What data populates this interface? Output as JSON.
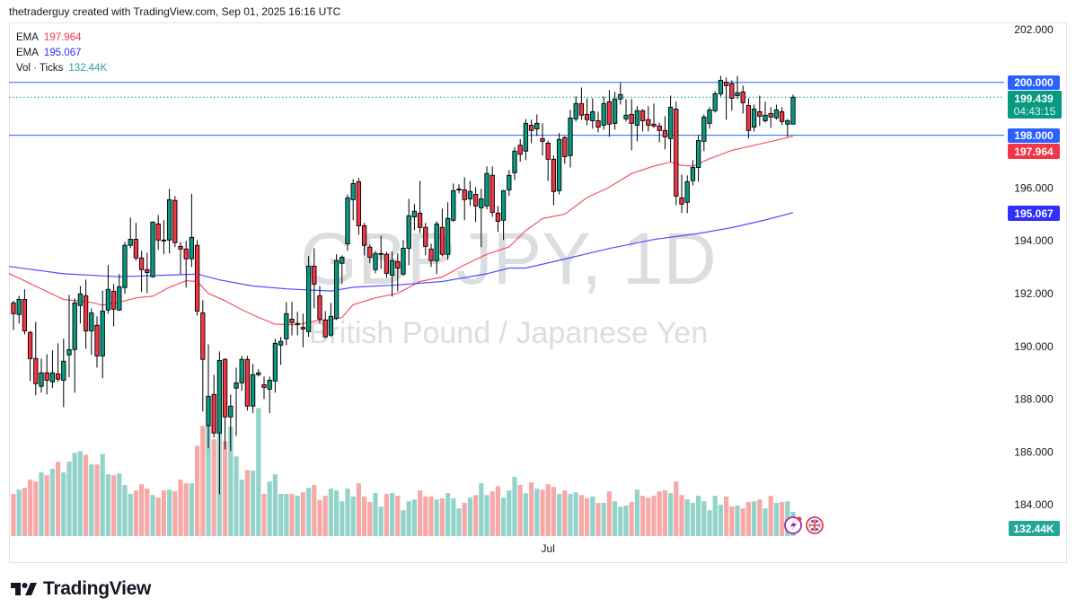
{
  "header": {
    "attribution": "thetraderguy created with TradingView.com, Sep 01, 2025 16:16 UTC"
  },
  "legend": [
    {
      "name": "EMA",
      "value": "197.964",
      "color": "#f23645"
    },
    {
      "name": "EMA",
      "value": "195.067",
      "color": "#3030ff"
    },
    {
      "name": "Vol · Ticks",
      "value": "132.44K",
      "color": "#26a69a"
    }
  ],
  "watermark": {
    "symbol": "GBPJPY, 1D",
    "description": "British Pound / Japanese Yen"
  },
  "price_labels": {
    "resistance": {
      "text": "200.000",
      "color": "#2962ff"
    },
    "last_price": {
      "text": "199.439",
      "countdown": "04:43:15",
      "color": "#089981"
    },
    "support": {
      "text": "198.000",
      "color": "#2962ff"
    },
    "ema_red": {
      "text": "197.964",
      "color": "#f23645"
    },
    "ema_blue": {
      "text": "195.067",
      "color": "#3030ff"
    },
    "volume": {
      "text": "132.44K",
      "color": "#26a69a"
    }
  },
  "icons": [
    "lightning-event-icon",
    "uk-flag-icon",
    "tradingview-logo-icon"
  ],
  "footer": {
    "logo_text": "TradingView"
  },
  "colors": {
    "up": "#089981",
    "down": "#f23645",
    "vol_up": "#92d3ca",
    "vol_down": "#f7a9a7",
    "hline": "#2962ff"
  },
  "chart_data": {
    "type": "candlestick",
    "ylim": [
      182.78,
      202.27
    ],
    "y_ticks": [
      "202.000",
      "200.000",
      "198.000",
      "196.000",
      "194.000",
      "192.000",
      "190.000",
      "188.000",
      "186.000",
      "184.000"
    ],
    "y_tick_values": [
      202,
      200,
      198,
      196,
      194,
      192,
      190,
      188,
      186,
      184
    ],
    "x_ticks": [
      {
        "label": "Jul",
        "index": 97
      }
    ],
    "horizontal_lines": [
      200.0,
      198.0
    ],
    "last_price": 199.439,
    "candles_ohlc": [
      [
        191.65,
        191.73,
        190.62,
        191.24
      ],
      [
        191.21,
        191.92,
        190.87,
        191.78
      ],
      [
        191.78,
        192.16,
        190.45,
        190.59
      ],
      [
        190.53,
        190.59,
        188.69,
        189.54
      ],
      [
        189.54,
        190.93,
        188.15,
        188.59
      ],
      [
        188.49,
        189.54,
        188.25,
        189.0
      ],
      [
        189.0,
        189.71,
        188.18,
        188.72
      ],
      [
        188.66,
        189.85,
        188.42,
        189.0
      ],
      [
        188.96,
        190.12,
        188.66,
        188.76
      ],
      [
        188.72,
        190.29,
        187.7,
        189.44
      ],
      [
        189.68,
        191.95,
        188.83,
        189.88
      ],
      [
        189.88,
        191.82,
        188.25,
        191.65
      ],
      [
        191.55,
        192.29,
        190.87,
        191.99
      ],
      [
        191.92,
        192.53,
        189.91,
        190.59
      ],
      [
        190.59,
        191.44,
        189.68,
        191.27
      ],
      [
        190.8,
        191.14,
        189.2,
        189.64
      ],
      [
        189.64,
        192.12,
        188.79,
        191.34
      ],
      [
        191.38,
        193.08,
        191.24,
        192.16
      ],
      [
        192.09,
        192.36,
        190.76,
        191.41
      ],
      [
        191.38,
        192.74,
        191.34,
        192.26
      ],
      [
        192.23,
        193.96,
        191.99,
        193.83
      ],
      [
        193.83,
        194.88,
        193.72,
        194.06
      ],
      [
        194.06,
        194.68,
        193.25,
        193.35
      ],
      [
        193.35,
        193.62,
        192.06,
        192.91
      ],
      [
        192.91,
        193.55,
        192.02,
        192.8
      ],
      [
        192.64,
        194.74,
        192.6,
        194.71
      ],
      [
        194.64,
        194.98,
        193.66,
        194.03
      ],
      [
        194.03,
        194.78,
        193.49,
        194.0
      ],
      [
        194.03,
        195.97,
        193.52,
        195.56
      ],
      [
        195.53,
        195.7,
        193.76,
        193.93
      ],
      [
        193.79,
        193.96,
        192.74,
        193.69
      ],
      [
        193.69,
        194.0,
        192.23,
        193.32
      ],
      [
        193.32,
        195.78,
        193.01,
        194.13
      ],
      [
        193.83,
        194.03,
        191.17,
        191.34
      ],
      [
        191.27,
        191.75,
        187.53,
        189.51
      ],
      [
        187.0,
        190.08,
        186.14,
        188.11
      ],
      [
        188.18,
        188.93,
        186.55,
        186.72
      ],
      [
        186.72,
        189.81,
        184.4,
        189.47
      ],
      [
        189.51,
        189.55,
        186.1,
        187.33
      ],
      [
        187.33,
        188.18,
        186.04,
        187.74
      ],
      [
        188.42,
        189.2,
        186.61,
        188.62
      ],
      [
        188.62,
        189.64,
        188.32,
        189.51
      ],
      [
        189.51,
        189.64,
        187.57,
        187.74
      ],
      [
        187.74,
        189.34,
        187.47,
        188.93
      ],
      [
        188.93,
        189.13,
        188.86,
        189.0
      ],
      [
        188.55,
        188.86,
        188.01,
        188.45
      ],
      [
        188.38,
        188.86,
        187.47,
        188.72
      ],
      [
        188.69,
        190.29,
        188.25,
        190.12
      ],
      [
        190.05,
        190.36,
        189.3,
        190.19
      ],
      [
        190.29,
        191.68,
        190.05,
        191.24
      ],
      [
        191.03,
        191.69,
        190.42,
        190.9
      ],
      [
        190.87,
        191.31,
        190.42,
        190.87
      ],
      [
        190.72,
        191.24,
        189.97,
        190.66
      ],
      [
        190.56,
        193.42,
        190.36,
        193.04
      ],
      [
        193.04,
        193.72,
        191.44,
        192.36
      ],
      [
        191.92,
        192.29,
        190.87,
        191.04
      ],
      [
        191.0,
        191.34,
        190.32,
        190.36
      ],
      [
        190.43,
        191.65,
        190.36,
        191.14
      ],
      [
        191.07,
        193.49,
        191.0,
        193.25
      ],
      [
        193.15,
        193.45,
        192.36,
        193.38
      ],
      [
        193.89,
        195.76,
        193.62,
        195.63
      ],
      [
        195.56,
        196.34,
        194.78,
        196.17
      ],
      [
        196.24,
        196.38,
        194.23,
        194.57
      ],
      [
        194.57,
        194.68,
        193.45,
        193.83
      ],
      [
        193.76,
        193.86,
        193.15,
        193.38
      ],
      [
        192.91,
        193.62,
        192.77,
        193.52
      ],
      [
        193.52,
        194.2,
        192.94,
        193.52
      ],
      [
        193.49,
        193.59,
        192.6,
        192.77
      ],
      [
        192.7,
        193.59,
        191.89,
        193.25
      ],
      [
        193.21,
        193.52,
        192.09,
        192.97
      ],
      [
        192.74,
        194.03,
        192.67,
        193.72
      ],
      [
        193.72,
        195.59,
        193.08,
        194.95
      ],
      [
        194.91,
        195.39,
        194.4,
        195.12
      ],
      [
        195.05,
        196.27,
        194.3,
        194.51
      ],
      [
        194.51,
        194.68,
        193.45,
        193.79
      ],
      [
        193.69,
        193.89,
        193.01,
        193.25
      ],
      [
        193.25,
        194.74,
        192.74,
        194.64
      ],
      [
        194.51,
        195.22,
        193.42,
        193.49
      ],
      [
        193.49,
        195.46,
        193.28,
        194.85
      ],
      [
        194.78,
        196.17,
        194.71,
        195.9
      ],
      [
        195.96,
        196.14,
        195.8,
        195.96
      ],
      [
        195.93,
        196.41,
        194.78,
        195.56
      ],
      [
        195.59,
        196.27,
        195.32,
        195.87
      ],
      [
        195.76,
        196.04,
        194.71,
        195.32
      ],
      [
        195.25,
        195.97,
        193.76,
        195.59
      ],
      [
        195.32,
        196.82,
        195.19,
        196.55
      ],
      [
        196.48,
        196.82,
        194.91,
        195.08
      ],
      [
        195.05,
        195.32,
        194.34,
        194.74
      ],
      [
        194.78,
        195.93,
        194.03,
        195.9
      ],
      [
        195.93,
        196.68,
        195.7,
        196.48
      ],
      [
        196.58,
        197.55,
        196.3,
        197.4
      ],
      [
        197.62,
        197.85,
        197.0,
        197.28
      ],
      [
        197.4,
        198.61,
        197.06,
        198.45
      ],
      [
        198.38,
        198.59,
        197.7,
        198.18
      ],
      [
        198.24,
        198.79,
        197.97,
        198.45
      ],
      [
        197.87,
        198.45,
        197.23,
        197.77
      ],
      [
        197.7,
        197.8,
        196.27,
        197.09
      ],
      [
        197.09,
        197.23,
        195.35,
        195.87
      ],
      [
        195.9,
        198.08,
        195.76,
        197.84
      ],
      [
        197.91,
        197.97,
        196.92,
        197.19
      ],
      [
        197.23,
        198.96,
        196.78,
        198.65
      ],
      [
        198.62,
        199.47,
        198.52,
        199.2
      ],
      [
        199.2,
        199.81,
        198.59,
        198.76
      ],
      [
        198.79,
        199.4,
        198.38,
        198.59
      ],
      [
        198.55,
        199.4,
        198.25,
        198.89
      ],
      [
        198.55,
        198.89,
        198.11,
        198.31
      ],
      [
        198.38,
        199.47,
        198.21,
        199.2
      ],
      [
        199.27,
        199.71,
        197.94,
        198.42
      ],
      [
        198.45,
        199.64,
        198.21,
        199.37
      ],
      [
        199.37,
        199.98,
        199.16,
        199.54
      ],
      [
        198.62,
        199.37,
        198.52,
        198.76
      ],
      [
        198.79,
        199.37,
        197.43,
        198.45
      ],
      [
        198.38,
        199.1,
        197.77,
        198.93
      ],
      [
        198.93,
        198.99,
        198.14,
        198.55
      ],
      [
        198.59,
        199.1,
        198.14,
        198.38
      ],
      [
        198.42,
        199.2,
        198.28,
        198.35
      ],
      [
        198.35,
        198.48,
        197.74,
        198.18
      ],
      [
        198.18,
        198.72,
        197.46,
        197.94
      ],
      [
        197.87,
        199.5,
        196.99,
        199.06
      ],
      [
        198.99,
        199.27,
        195.35,
        195.69
      ],
      [
        195.63,
        196.51,
        195.05,
        195.39
      ],
      [
        195.46,
        196.48,
        195.05,
        196.24
      ],
      [
        196.28,
        197.06,
        196.1,
        196.78
      ],
      [
        196.78,
        198.01,
        196.24,
        197.8
      ],
      [
        197.77,
        198.79,
        197.4,
        198.69
      ],
      [
        198.45,
        199.06,
        198.25,
        198.96
      ],
      [
        198.93,
        199.67,
        198.86,
        199.57
      ],
      [
        199.57,
        200.25,
        199.47,
        200.08
      ],
      [
        200.01,
        200.18,
        198.59,
        199.88
      ],
      [
        199.95,
        200.08,
        198.93,
        199.4
      ],
      [
        199.5,
        200.25,
        199.37,
        199.61
      ],
      [
        199.64,
        199.88,
        198.82,
        199.23
      ],
      [
        199.13,
        199.4,
        197.87,
        198.18
      ],
      [
        198.31,
        199.16,
        198.14,
        198.99
      ],
      [
        198.89,
        199.5,
        198.35,
        198.72
      ],
      [
        198.55,
        199.27,
        198.48,
        198.76
      ],
      [
        198.82,
        199.06,
        198.28,
        198.69
      ],
      [
        198.66,
        199.16,
        198.59,
        198.96
      ],
      [
        198.89,
        199.06,
        198.38,
        198.52
      ],
      [
        198.42,
        198.62,
        197.94,
        198.55
      ],
      [
        198.42,
        199.54,
        198.42,
        199.44
      ]
    ],
    "volume_k": [
      230,
      253,
      263,
      308,
      298,
      347,
      332,
      367,
      406,
      347,
      406,
      454,
      463,
      444,
      391,
      391,
      449,
      337,
      332,
      342,
      279,
      230,
      249,
      283,
      259,
      224,
      210,
      249,
      253,
      244,
      308,
      288,
      288,
      493,
      601,
      616,
      528,
      630,
      518,
      596,
      435,
      308,
      361,
      357,
      699,
      230,
      298,
      337,
      230,
      230,
      230,
      220,
      239,
      263,
      279,
      196,
      220,
      259,
      249,
      190,
      259,
      216,
      288,
      216,
      186,
      235,
      161,
      230,
      235,
      220,
      141,
      190,
      200,
      249,
      216,
      216,
      200,
      206,
      235,
      206,
      151,
      181,
      210,
      224,
      288,
      224,
      244,
      273,
      210,
      249,
      323,
      279,
      234,
      293,
      259,
      253,
      283,
      269,
      230,
      249,
      230,
      239,
      224,
      206,
      216,
      181,
      181,
      244,
      190,
      161,
      167,
      186,
      253,
      220,
      210,
      220,
      244,
      249,
      234,
      298,
      224,
      200,
      181,
      220,
      190,
      141,
      220,
      171,
      216,
      161,
      167,
      151,
      186,
      190,
      200,
      151,
      220,
      181,
      186,
      190,
      132.44
    ],
    "ema_red": [
      [
        0,
        192.77
      ],
      [
        10,
        191.78
      ],
      [
        15,
        191.67
      ],
      [
        17,
        191.56
      ],
      [
        20,
        191.67
      ],
      [
        23,
        191.84
      ],
      [
        26,
        191.9
      ],
      [
        29,
        192.24
      ],
      [
        32,
        192.49
      ],
      [
        34,
        192.46
      ],
      [
        36,
        192.01
      ],
      [
        39,
        191.73
      ],
      [
        42,
        191.39
      ],
      [
        45,
        191.1
      ],
      [
        48,
        190.84
      ],
      [
        52,
        190.82
      ],
      [
        56,
        191.0
      ],
      [
        58,
        191.0
      ],
      [
        60,
        191.1
      ],
      [
        62,
        191.58
      ],
      [
        66,
        191.84
      ],
      [
        70,
        192.01
      ],
      [
        74,
        192.46
      ],
      [
        78,
        192.63
      ],
      [
        82,
        193.09
      ],
      [
        86,
        193.49
      ],
      [
        90,
        193.77
      ],
      [
        93,
        194.39
      ],
      [
        96,
        194.84
      ],
      [
        100,
        195.01
      ],
      [
        104,
        195.64
      ],
      [
        108,
        196.03
      ],
      [
        112,
        196.55
      ],
      [
        116,
        196.83
      ],
      [
        119,
        196.98
      ],
      [
        121,
        196.86
      ],
      [
        123,
        196.83
      ],
      [
        126,
        197.11
      ],
      [
        130,
        197.43
      ],
      [
        134,
        197.62
      ],
      [
        138,
        197.81
      ],
      [
        141,
        197.964
      ]
    ],
    "ema_blue": [
      [
        0,
        193.03
      ],
      [
        10,
        192.75
      ],
      [
        20,
        192.64
      ],
      [
        30,
        192.71
      ],
      [
        34,
        192.74
      ],
      [
        38,
        192.52
      ],
      [
        44,
        192.29
      ],
      [
        50,
        192.18
      ],
      [
        58,
        192.1
      ],
      [
        62,
        192.24
      ],
      [
        70,
        192.33
      ],
      [
        78,
        192.46
      ],
      [
        86,
        192.75
      ],
      [
        90,
        192.97
      ],
      [
        93,
        192.97
      ],
      [
        100,
        193.31
      ],
      [
        108,
        193.71
      ],
      [
        116,
        194.05
      ],
      [
        124,
        194.28
      ],
      [
        130,
        194.5
      ],
      [
        136,
        194.79
      ],
      [
        141,
        195.067
      ]
    ]
  }
}
